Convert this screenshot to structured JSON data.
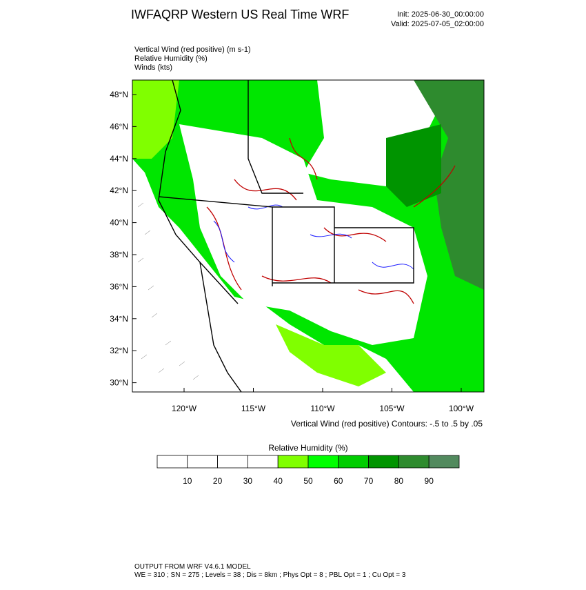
{
  "header": {
    "title": "IWFAQRP Western US Real Time WRF",
    "init": "Init: 2025-06-30_00:00:00",
    "valid": "Valid: 2025-07-05_02:00:00"
  },
  "fields": [
    "Vertical Wind (red positive)   (m s-1)",
    "Relative Humidity   (%)",
    "Winds   (kts)"
  ],
  "map": {
    "lat_labels": [
      "48°N",
      "46°N",
      "44°N",
      "42°N",
      "40°N",
      "38°N",
      "36°N",
      "34°N",
      "32°N",
      "30°N"
    ],
    "lon_labels": [
      "120°W",
      "115°W",
      "110°W",
      "105°W",
      "100°W"
    ],
    "contour_note": "Vertical Wind (red positive) Contours: -.5 to .5 by .05"
  },
  "colorbar": {
    "title": "Relative Humidity   (%)",
    "colors": [
      "#ffffff",
      "#ffffff",
      "#ffffff",
      "#ffffff",
      "#80ff00",
      "#00ff00",
      "#00cd00",
      "#009400",
      "#2e8b2e",
      "#528a5e"
    ],
    "ticks": [
      "10",
      "20",
      "30",
      "40",
      "50",
      "60",
      "70",
      "80",
      "90"
    ]
  },
  "footer": [
    "OUTPUT FROM WRF V4.6.1 MODEL",
    "WE = 310 ; SN = 275 ; Levels = 38 ; Dis = 8km ; Phys Opt = 8 ; PBL Opt = 1 ; Cu Opt = 3"
  ]
}
